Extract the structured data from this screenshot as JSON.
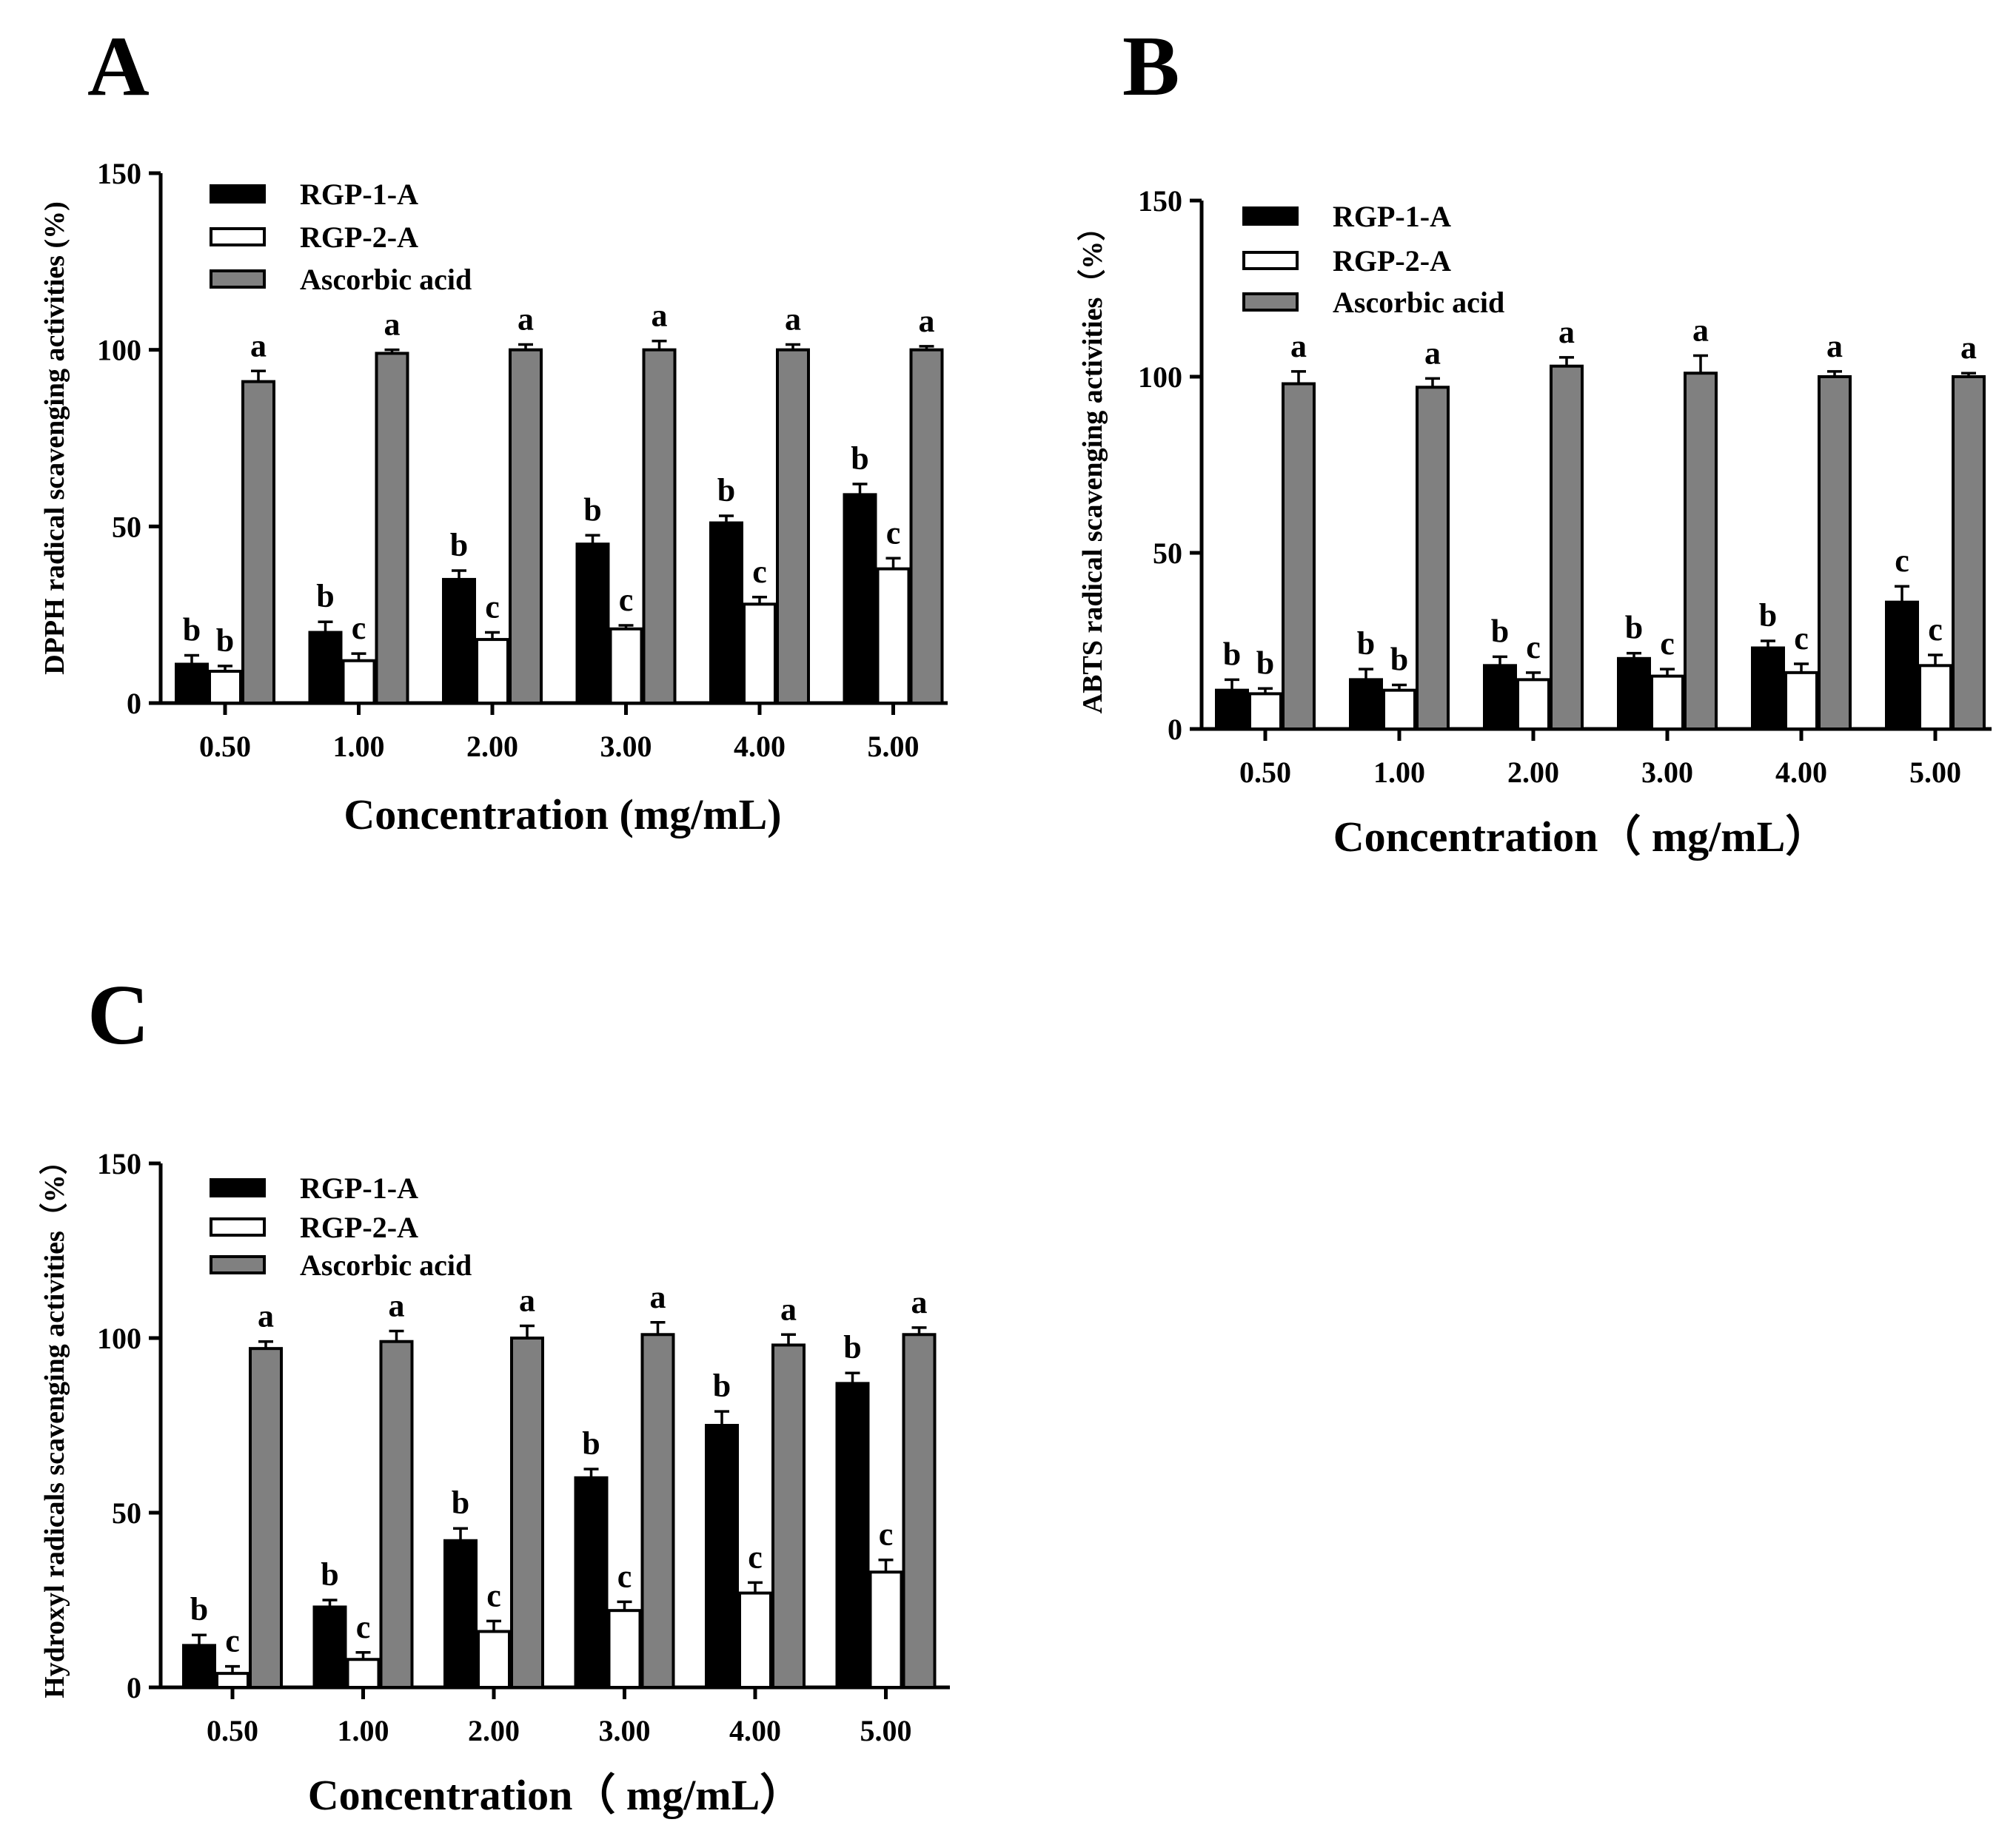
{
  "chart_data": [
    {
      "panel": "A",
      "type": "bar",
      "categories": [
        "0.50",
        "1.00",
        "2.00",
        "3.00",
        "4.00",
        "5.00"
      ],
      "series": [
        {
          "name": "RGP-1-A",
          "values": [
            11,
            20,
            35,
            45,
            51,
            59
          ],
          "errors": [
            2.5,
            3,
            2.5,
            2.5,
            2,
            3
          ],
          "letters": [
            "b",
            "b",
            "b",
            "b",
            "b",
            "b"
          ],
          "color": "#000000"
        },
        {
          "name": "RGP-2-A",
          "values": [
            9,
            12,
            18,
            21,
            28,
            38
          ],
          "errors": [
            1.5,
            2,
            2,
            1,
            2,
            3
          ],
          "letters": [
            "b",
            "c",
            "c",
            "c",
            "c",
            "c"
          ],
          "color": "#ffffff"
        },
        {
          "name": " Ascorbic acid",
          "values": [
            91,
            99,
            100,
            100,
            100,
            100
          ],
          "errors": [
            3,
            1,
            1.5,
            2.5,
            1.5,
            1
          ],
          "letters": [
            "a",
            "a",
            "a",
            "a",
            "a",
            "a"
          ],
          "color": "#808080"
        }
      ],
      "ylim": [
        0,
        150
      ],
      "yticks": [
        "0",
        "50",
        "100",
        "150"
      ],
      "ylabel": "DPPH radical scavenging activities (%)",
      "xlabel": "Concentration (mg/mL)",
      "legend": "top-left"
    },
    {
      "panel": "B",
      "type": "bar",
      "categories": [
        "0.50",
        "1.00",
        "2.00",
        "3.00",
        "4.00",
        "5.00"
      ],
      "series": [
        {
          "name": "RGP-1-A",
          "values": [
            11,
            14,
            18,
            20,
            23,
            36
          ],
          "errors": [
            3,
            3,
            2.5,
            1.5,
            2,
            4.5
          ],
          "letters": [
            "b",
            "b",
            "b",
            "b",
            "b",
            "c"
          ],
          "color": "#000000"
        },
        {
          "name": "RGP-2-A",
          "values": [
            10,
            11,
            14,
            15,
            16,
            18
          ],
          "errors": [
            1.5,
            1.5,
            2,
            2,
            2.5,
            3
          ],
          "letters": [
            "b",
            "b",
            "c",
            "c",
            "c",
            "c"
          ],
          "color": "#ffffff"
        },
        {
          "name": " Ascorbic acid",
          "values": [
            98,
            97,
            103,
            101,
            100,
            100
          ],
          "errors": [
            3.5,
            2.5,
            2.5,
            5,
            1.5,
            1
          ],
          "letters": [
            "a",
            "a",
            "a",
            "a",
            "a",
            "a"
          ],
          "color": "#808080"
        }
      ],
      "ylim": [
        0,
        150
      ],
      "yticks": [
        "0",
        "50",
        "100",
        "150"
      ],
      "ylabel": "ABTS radical scavenging activities（%）",
      "xlabel": "Concentration（ mg/mL）",
      "legend": "top-left"
    },
    {
      "panel": "C",
      "type": "bar",
      "categories": [
        "0.50",
        "1.00",
        "2.00",
        "3.00",
        "4.00",
        "5.00"
      ],
      "series": [
        {
          "name": "RGP-1-A",
          "values": [
            12,
            23,
            42,
            60,
            75,
            87
          ],
          "errors": [
            3,
            2,
            3.5,
            2.5,
            4,
            3
          ],
          "letters": [
            "b",
            "b",
            "b",
            "b",
            "b",
            "b"
          ],
          "color": "#000000"
        },
        {
          "name": "RGP-2-A",
          "values": [
            4,
            8,
            16,
            22,
            27,
            33
          ],
          "errors": [
            2,
            2,
            3,
            2.5,
            3,
            3.5
          ],
          "letters": [
            "c",
            "c",
            "c",
            "c",
            "c",
            "c"
          ],
          "color": "#ffffff"
        },
        {
          "name": " Ascorbic acid",
          "values": [
            97,
            99,
            100,
            101,
            98,
            101
          ],
          "errors": [
            2,
            3,
            3.5,
            3.5,
            3,
            2
          ],
          "letters": [
            "a",
            "a",
            "a",
            "a",
            "a",
            "a"
          ],
          "color": "#808080"
        }
      ],
      "ylim": [
        0,
        150
      ],
      "yticks": [
        "0",
        "50",
        "100",
        "150"
      ],
      "ylabel": "Hydroxyl radicals scavenging activities（%）",
      "xlabel": "Concentration（ mg/mL）",
      "legend": "top-left"
    }
  ]
}
